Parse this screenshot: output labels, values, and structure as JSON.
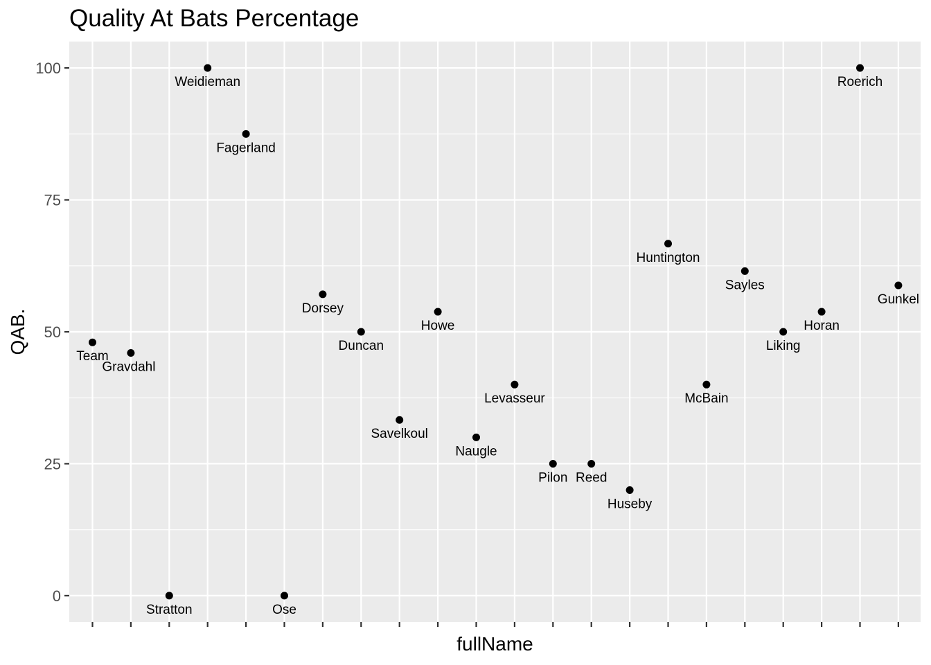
{
  "chart_data": {
    "type": "scatter",
    "title": "Quality At Bats Percentage",
    "xlabel": "fullName",
    "ylabel": "QAB.",
    "ylim": [
      -5,
      105
    ],
    "y_ticks": [
      0,
      25,
      50,
      75,
      100
    ],
    "y_tick_labels": [
      "0",
      "25",
      "50",
      "75",
      "100"
    ],
    "x_tick_labels_shown": false,
    "grid": true,
    "legend": "none",
    "colors": {
      "panel_background": "#ebebeb",
      "grid": "#ffffff",
      "point": "#000000",
      "tick": "#333333"
    },
    "points": [
      {
        "x": "Team",
        "y": 48.0
      },
      {
        "x": "Gravdahl",
        "y": 46.0
      },
      {
        "x": "Stratton",
        "y": 0
      },
      {
        "x": "Weidieman",
        "y": 100
      },
      {
        "x": "Fagerland",
        "y": 87.5
      },
      {
        "x": "Ose",
        "y": 0
      },
      {
        "x": "Dorsey",
        "y": 57.1
      },
      {
        "x": "Duncan",
        "y": 50.0
      },
      {
        "x": "Savelkoul",
        "y": 33.3
      },
      {
        "x": "Howe",
        "y": 53.8
      },
      {
        "x": "Naugle",
        "y": 30.0
      },
      {
        "x": "Levasseur",
        "y": 40.0
      },
      {
        "x": "Pilon",
        "y": 25.0
      },
      {
        "x": "Reed",
        "y": 25.0
      },
      {
        "x": "Huseby",
        "y": 20.0
      },
      {
        "x": "Huntington",
        "y": 66.7
      },
      {
        "x": "McBain",
        "y": 40.0
      },
      {
        "x": "Sayles",
        "y": 61.5
      },
      {
        "x": "Liking",
        "y": 50.0
      },
      {
        "x": "Horan",
        "y": 53.8
      },
      {
        "x": "Roerich",
        "y": 100
      },
      {
        "x": "Gunkel",
        "y": 58.8
      }
    ]
  }
}
